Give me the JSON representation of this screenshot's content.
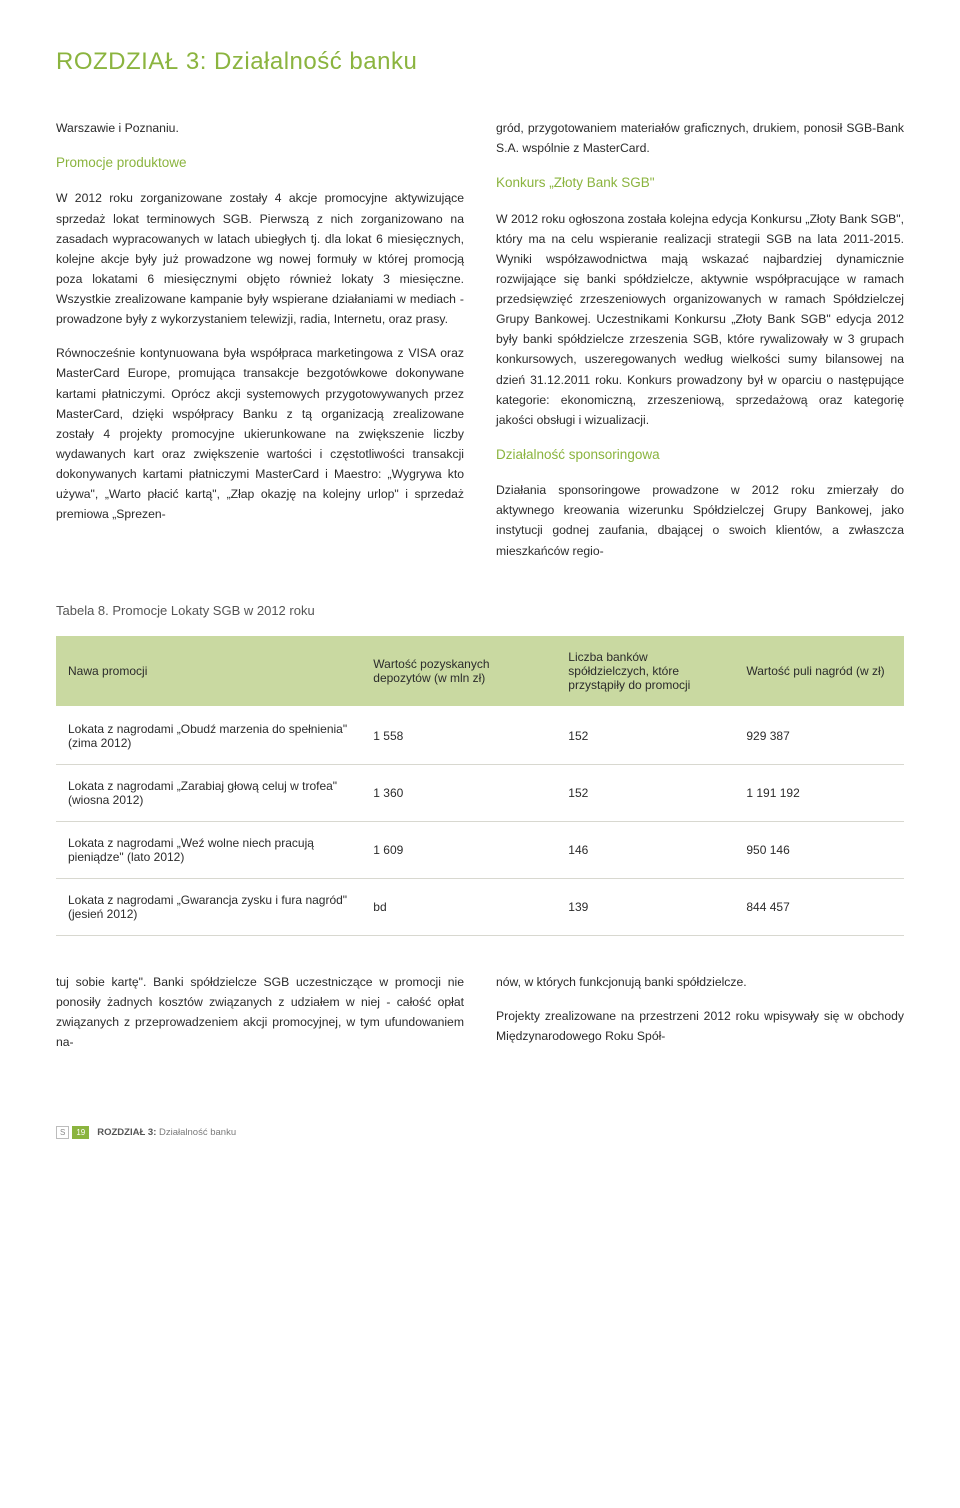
{
  "chapter": {
    "prefix": "ROZDZIAŁ 3: ",
    "title": "Działalność banku"
  },
  "leftCol": {
    "p1": "Warszawie i Poznaniu.",
    "h1": "Promocje produktowe",
    "p2": "W 2012 roku zorganizowane zostały 4 akcje promocyjne aktywizujące sprzedaż lokat terminowych SGB. Pierwszą z nich zorganizowano na zasadach wypracowanych w latach ubiegłych tj. dla lokat 6 miesięcznych, kolejne akcje były już prowadzone wg nowej formuły w której promocją poza lokatami 6 miesięcznymi objęto również lokaty 3 miesięczne. Wszystkie zrealizowane kampanie były wspierane działaniami w mediach - prowadzone były z wykorzystaniem telewizji, radia, Internetu, oraz prasy.",
    "p3": "Równocześnie kontynuowana była współpraca marketingowa z VISA oraz MasterCard Europe, promująca transakcje bezgotówkowe dokonywane kartami płatniczymi. Oprócz akcji systemowych przygotowywanych przez MasterCard, dzięki współpracy Banku z tą organizacją zrealizowane zostały 4 projekty promocyjne ukierunkowane na zwiększenie liczby wydawanych kart oraz zwiększenie wartości i częstotliwości transakcji dokonywanych kartami płatniczymi MasterCard i Maestro: „Wygrywa kto używa\", „Warto płacić kartą\", „Złap okazję na kolejny urlop\" i sprzedaż premiowa „Sprezen-"
  },
  "rightCol": {
    "p1": "gród, przygotowaniem materiałów graficznych, drukiem, ponosił SGB-Bank S.A. wspólnie z MasterCard.",
    "h1": "Konkurs „Złoty Bank SGB\"",
    "p2": "W 2012 roku ogłoszona została kolejna edycja Konkursu „Złoty Bank SGB\", który ma na celu wspieranie realizacji strategii SGB na lata 2011-2015. Wyniki współzawodnictwa mają wskazać najbardziej dynamicznie rozwijające się banki spółdzielcze, aktywnie współpracujące w ramach przedsięwzięć zrzeszeniowych organizowanych w ramach Spółdzielczej Grupy Bankowej. Uczestnikami Konkursu „Złoty Bank SGB\" edycja 2012 były banki spółdzielcze zrzeszenia SGB, które rywalizowały w 3 grupach konkursowych, uszeregowanych według wielkości sumy bilansowej na dzień 31.12.2011 roku. Konkurs prowadzony był w oparciu o następujące kategorie: ekonomiczną, zrzeszeniową, sprzedażową oraz kategorię jakości obsługi i wizualizacji.",
    "h2": "Działalność sponsoringowa",
    "p3": "Działania sponsoringowe prowadzone w 2012 roku zmierzały do aktywnego kreowania wizerunku Spółdzielczej Grupy Bankowej, jako instytucji godnej zaufania, dbającej o swoich klientów, a zwłaszcza mieszkańców regio-"
  },
  "tableCaption": "Tabela 8. Promocje Lokaty SGB w 2012 roku",
  "table": {
    "columns": [
      "Nawa promocji",
      "Wartość pozyskanych depozytów (w mln zł)",
      "Liczba banków spółdzielczych, które przystąpiły do promocji",
      "Wartość puli nagród (w zł)"
    ],
    "col_widths": [
      "36%",
      "23%",
      "21%",
      "20%"
    ],
    "header_bg": "#c9d9a1",
    "row_border": "#d8d8d0",
    "rows": [
      [
        "Lokata z nagrodami „Obudź marzenia do spełnienia\" (zima 2012)",
        "1 558",
        "152",
        "929 387"
      ],
      [
        "Lokata z nagrodami „Zarabiaj głową celuj w trofea\" (wiosna 2012)",
        "1 360",
        "152",
        "1 191 192"
      ],
      [
        "Lokata z nagrodami „Weź wolne niech pracują pieniądze\" (lato 2012)",
        "1 609",
        "146",
        "950 146"
      ],
      [
        "Lokata z nagrodami „Gwarancja zysku i fura nagród\" (jesień 2012)",
        "bd",
        "139",
        "844 457"
      ]
    ]
  },
  "bottom": {
    "left": "tuj sobie kartę\". Banki spółdzielcze SGB uczestniczące w promocji nie ponosiły żadnych kosztów związanych z udziałem w niej - całość opłat związanych z przeprowadzeniem akcji promocyjnej, w tym ufundowaniem na-",
    "rightP1": "nów, w których funkcjonują banki spółdzielcze.",
    "rightP2": "Projekty zrealizowane na przestrzeni 2012 roku wpisywały się w obchody Międzynarodowego Roku Spół-"
  },
  "footer": {
    "pagePrev": "S",
    "pageCur": "19",
    "crumbBold": "ROZDZIAŁ 3:",
    "crumbRest": " Działalność banku"
  }
}
